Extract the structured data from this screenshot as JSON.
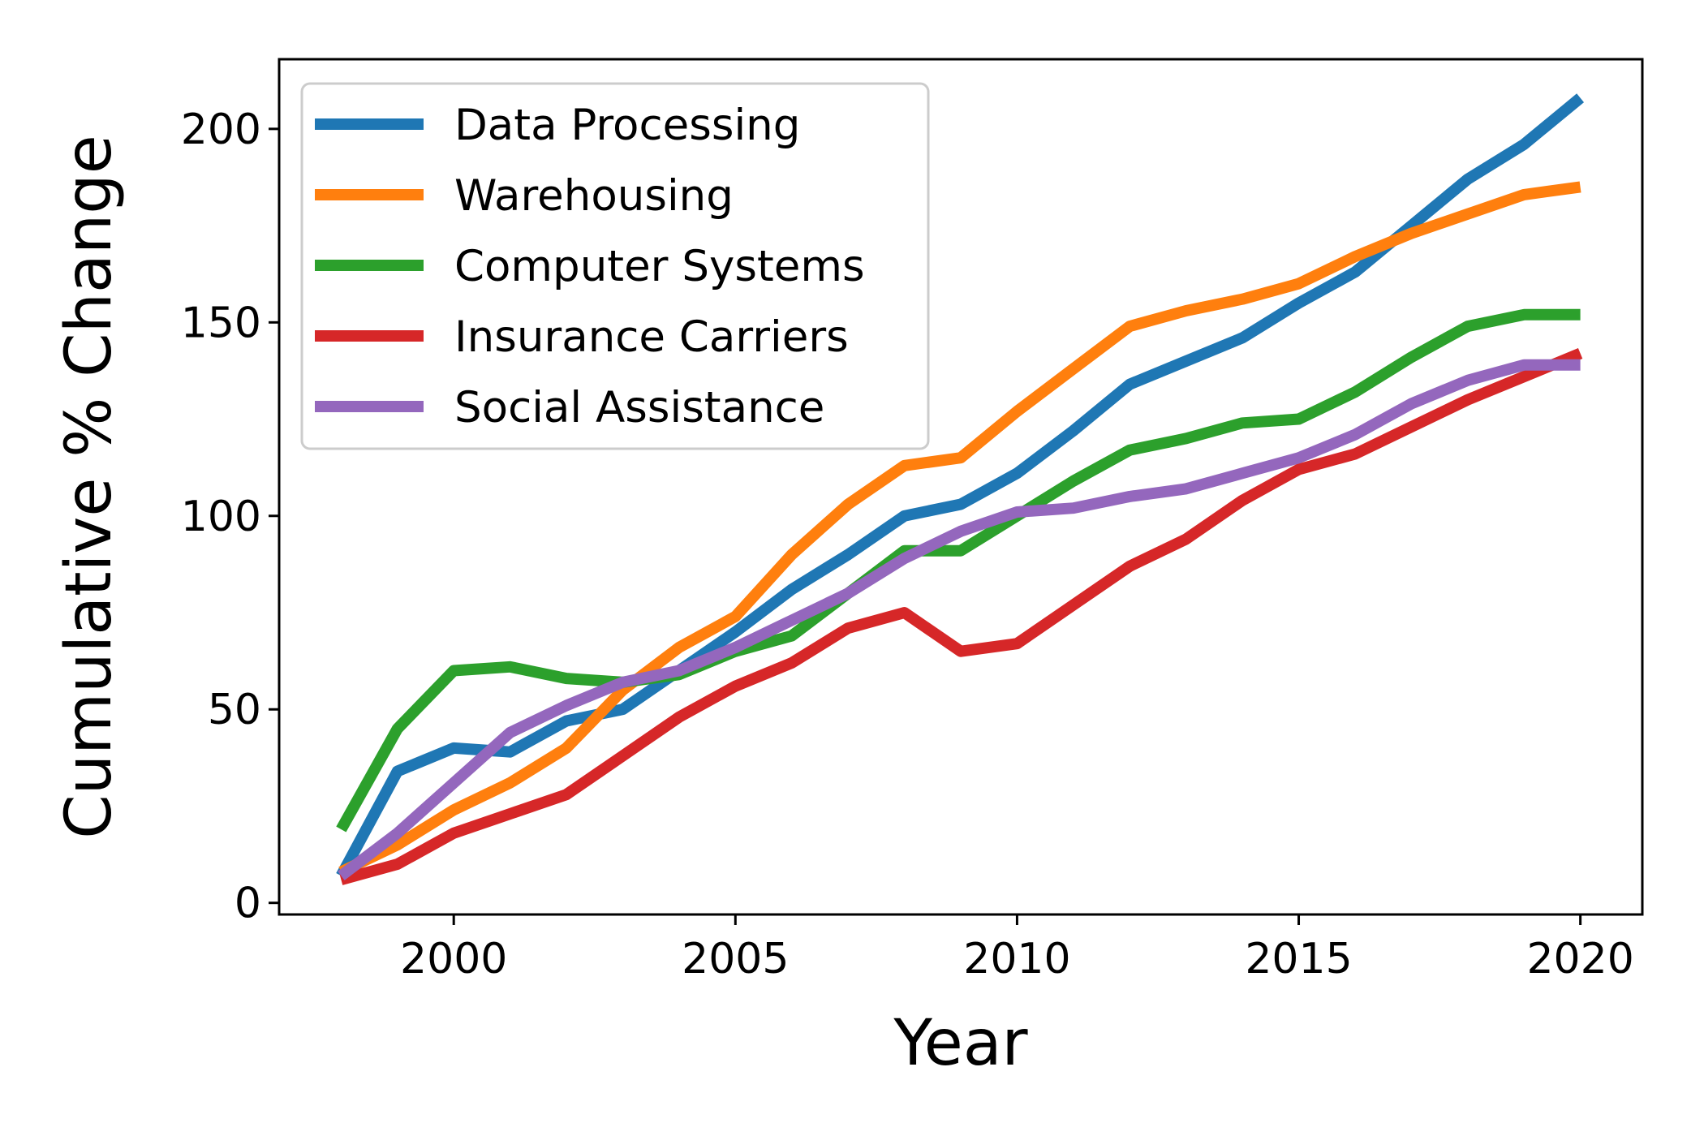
{
  "chart_data": {
    "type": "line",
    "title": "",
    "xlabel": "Year",
    "ylabel": "Cumulative % Change",
    "xlim": [
      1996.9,
      2021.1
    ],
    "ylim": [
      -3,
      218
    ],
    "xticks": [
      2000,
      2005,
      2010,
      2015,
      2020
    ],
    "xtick_labels": [
      "2000",
      "2005",
      "2010",
      "2015",
      "2020"
    ],
    "yticks": [
      0,
      50,
      100,
      150,
      200
    ],
    "ytick_labels": [
      "0",
      "50",
      "100",
      "150",
      "200"
    ],
    "grid": false,
    "legend_position": "upper-left",
    "x": [
      1998,
      1999,
      2000,
      2001,
      2002,
      2003,
      2004,
      2005,
      2006,
      2007,
      2008,
      2009,
      2010,
      2011,
      2012,
      2013,
      2014,
      2015,
      2016,
      2017,
      2018,
      2019,
      2020
    ],
    "series": [
      {
        "name": "Data Processing",
        "color": "#1f77b4",
        "values": [
          7,
          34,
          40,
          39,
          47,
          50,
          60,
          70,
          81,
          90,
          100,
          103,
          111,
          122,
          134,
          140,
          146,
          155,
          163,
          175,
          187,
          196,
          208
        ]
      },
      {
        "name": "Warehousing",
        "color": "#ff7f0e",
        "values": [
          8,
          15,
          24,
          31,
          40,
          55,
          66,
          74,
          90,
          103,
          113,
          115,
          127,
          138,
          149,
          153,
          156,
          160,
          167,
          173,
          178,
          183,
          185
        ]
      },
      {
        "name": "Computer Systems",
        "color": "#2ca02c",
        "values": [
          19,
          45,
          60,
          61,
          58,
          57,
          59,
          65,
          69,
          80,
          91,
          91,
          100,
          109,
          117,
          120,
          124,
          125,
          132,
          141,
          149,
          152,
          152
        ]
      },
      {
        "name": "Insurance Carriers",
        "color": "#d62728",
        "values": [
          6,
          10,
          18,
          23,
          28,
          38,
          48,
          56,
          62,
          71,
          75,
          65,
          67,
          77,
          87,
          94,
          104,
          112,
          116,
          123,
          130,
          136,
          142
        ]
      },
      {
        "name": "Social Assistance",
        "color": "#9467bd",
        "values": [
          7,
          18,
          31,
          44,
          51,
          57,
          60,
          66,
          73,
          80,
          89,
          96,
          101,
          102,
          105,
          107,
          111,
          115,
          121,
          129,
          135,
          139,
          139
        ]
      }
    ]
  }
}
